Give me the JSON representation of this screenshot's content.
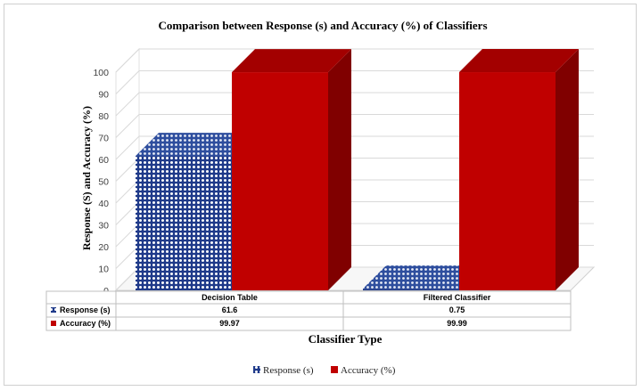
{
  "chart_data": {
    "type": "bar",
    "title": "Comparison between Response (s) and Accuracy (%) of Classifiers",
    "xlabel": "Classifier Type",
    "ylabel": "Response (S) and Accuracy (%)",
    "ylim": [
      0,
      100
    ],
    "yticks": [
      0,
      10,
      20,
      30,
      40,
      50,
      60,
      70,
      80,
      90,
      100
    ],
    "categories": [
      "Decision Table",
      "Filtered Classifier"
    ],
    "series": [
      {
        "name": "Response (s)",
        "values": [
          61.6,
          0.75
        ],
        "value_labels": [
          "61.6",
          "0.75"
        ],
        "color": "#1f3a8a"
      },
      {
        "name": "Accuracy (%)",
        "values": [
          99.97,
          99.99
        ],
        "value_labels": [
          "99.97",
          "99.99"
        ],
        "color": "#c00000"
      }
    ],
    "legend_position": "bottom",
    "data_table": true,
    "gridlines": true
  }
}
